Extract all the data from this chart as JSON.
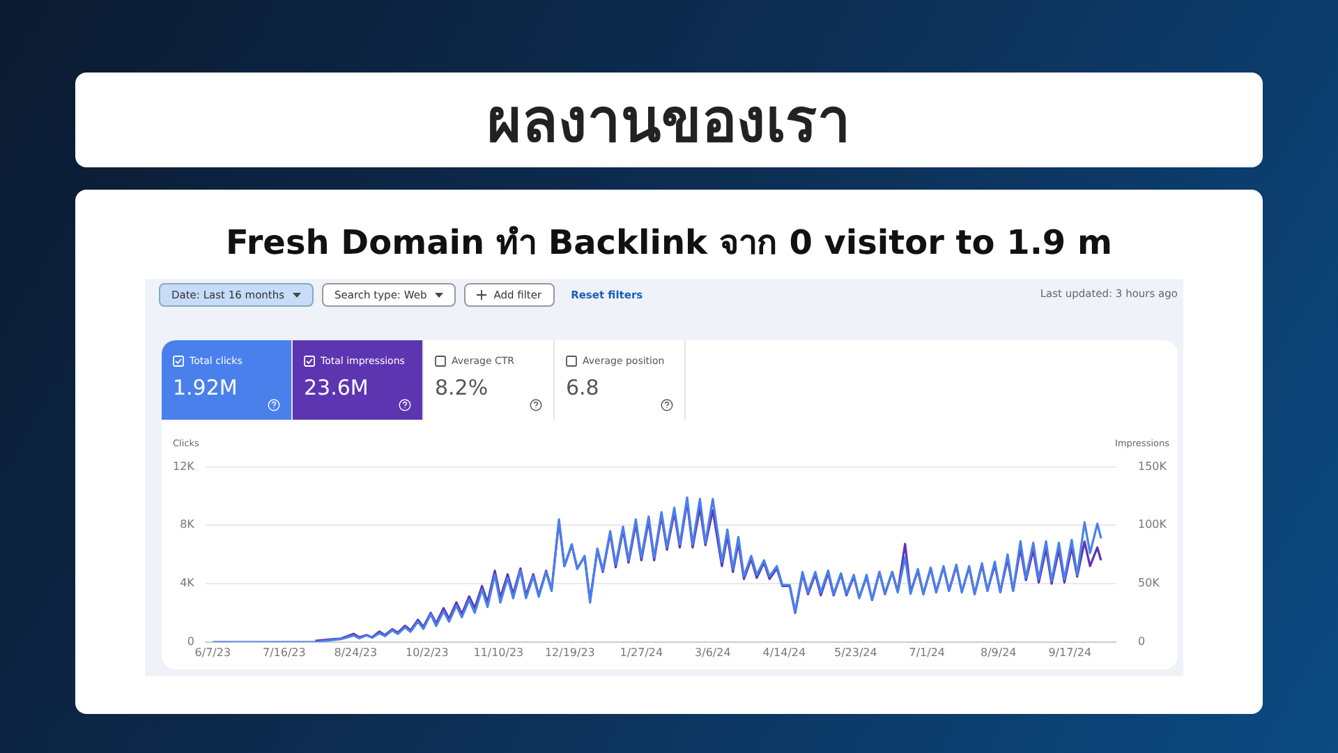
{
  "chart_data": {
    "type": "line",
    "title": "ผลงานของเรา",
    "subtitle": "Fresh Domain ทำ Backlink จาก 0 visitor to 1.9 m",
    "ylabel": "Clicks",
    "y2label": "Impressions",
    "annotations": [
      "Date: Last 16 months",
      "Search type: Web",
      "Add filter",
      "Reset filters",
      "Last updated: 3 hours ago",
      "Total clicks",
      "1.92M",
      "Total impressions",
      "23.6M",
      "Average CTR",
      "8.2%",
      "Average position",
      "6.8"
    ],
    "x": [
      "2023-06-07",
      "2023-06-21",
      "2023-07-05",
      "2023-07-19",
      "2023-08-02",
      "2023-08-09",
      "2023-08-16",
      "2023-08-23",
      "2023-08-26",
      "2023-08-30",
      "2023-09-02",
      "2023-09-06",
      "2023-09-09",
      "2023-09-13",
      "2023-09-16",
      "2023-09-20",
      "2023-09-23",
      "2023-09-27",
      "2023-09-30",
      "2023-10-04",
      "2023-10-07",
      "2023-10-11",
      "2023-10-14",
      "2023-10-18",
      "2023-10-21",
      "2023-10-25",
      "2023-10-28",
      "2023-11-01",
      "2023-11-04",
      "2023-11-08",
      "2023-11-11",
      "2023-11-15",
      "2023-11-18",
      "2023-11-22",
      "2023-11-25",
      "2023-11-29",
      "2023-12-02",
      "2023-12-06",
      "2023-12-09",
      "2023-12-13",
      "2023-12-16",
      "2023-12-20",
      "2023-12-23",
      "2023-12-27",
      "2023-12-30",
      "2024-01-03",
      "2024-01-06",
      "2024-01-10",
      "2024-01-13",
      "2024-01-17",
      "2024-01-20",
      "2024-01-24",
      "2024-01-27",
      "2024-01-31",
      "2024-02-03",
      "2024-02-07",
      "2024-02-10",
      "2024-02-14",
      "2024-02-17",
      "2024-02-21",
      "2024-02-24",
      "2024-02-28",
      "2024-03-02",
      "2024-03-06",
      "2024-03-11",
      "2024-03-14",
      "2024-03-17",
      "2024-03-20",
      "2024-03-23",
      "2024-03-27",
      "2024-03-30",
      "2024-04-03",
      "2024-04-06",
      "2024-04-10",
      "2024-04-13",
      "2024-04-17",
      "2024-04-20",
      "2024-04-24",
      "2024-04-27",
      "2024-05-01",
      "2024-05-04",
      "2024-05-08",
      "2024-05-11",
      "2024-05-15",
      "2024-05-18",
      "2024-05-22",
      "2024-05-25",
      "2024-05-29",
      "2024-06-01",
      "2024-06-05",
      "2024-06-08",
      "2024-06-12",
      "2024-06-15",
      "2024-06-19",
      "2024-06-22",
      "2024-06-26",
      "2024-06-29",
      "2024-07-03",
      "2024-07-06",
      "2024-07-10",
      "2024-07-13",
      "2024-07-17",
      "2024-07-20",
      "2024-07-24",
      "2024-07-27",
      "2024-07-31",
      "2024-08-03",
      "2024-08-07",
      "2024-08-10",
      "2024-08-14",
      "2024-08-17",
      "2024-08-21",
      "2024-08-24",
      "2024-08-28",
      "2024-08-31",
      "2024-09-04",
      "2024-09-07",
      "2024-09-11",
      "2024-09-14",
      "2024-09-18",
      "2024-09-21",
      "2024-09-25",
      "2024-09-28",
      "2024-10-02",
      "2024-10-04"
    ],
    "series": [
      {
        "color": "#4a80ec",
        "values": [
          0,
          0,
          0,
          0,
          0,
          100,
          200,
          450,
          250,
          450,
          300,
          600,
          400,
          800,
          550,
          1000,
          700,
          1400,
          900,
          1900,
          1100,
          2100,
          1400,
          2500,
          1700,
          2900,
          2000,
          3600,
          2400,
          4600,
          2700,
          4400,
          3000,
          4900,
          3000,
          4500,
          3100,
          4800,
          3500,
          8400,
          5200,
          6700,
          5000,
          5900,
          2700,
          6400,
          4900,
          7600,
          5300,
          7900,
          5600,
          8400,
          5800,
          8600,
          5800,
          8900,
          6500,
          9200,
          6700,
          9900,
          6700,
          9800,
          6800,
          9800,
          5500,
          7700,
          5000,
          7200,
          4500,
          5900,
          4600,
          5600,
          4500,
          5200,
          3900,
          3900,
          2100,
          4800,
          3400,
          4800,
          3400,
          4900,
          3300,
          4700,
          3300,
          4600,
          3000,
          4600,
          2900,
          4800,
          3300,
          4800,
          3400,
          5800,
          3300,
          5000,
          3300,
          5100,
          3400,
          5200,
          3500,
          5300,
          3400,
          5200,
          3300,
          5400,
          3500,
          5500,
          3400,
          6000,
          3500,
          6900,
          4400,
          6800,
          4300,
          6900,
          4200,
          6800,
          4300,
          7000,
          4600,
          8200,
          6100,
          8100,
          7100
        ]
      },
      {
        "color": "#5e35b1",
        "axis": "y2",
        "values": [
          null,
          null,
          null,
          null,
          1000,
          2000,
          3000,
          7000,
          4000,
          6000,
          4000,
          9000,
          6000,
          11000,
          8000,
          14000,
          10000,
          19000,
          13000,
          25000,
          16000,
          29000,
          20000,
          34000,
          24000,
          39000,
          29000,
          48000,
          34000,
          61000,
          38000,
          58000,
          41000,
          63000,
          40000,
          58000,
          40000,
          61000,
          45000,
          103000,
          65000,
          83000,
          63000,
          73000,
          36000,
          79000,
          60000,
          93000,
          64000,
          96000,
          68000,
          101000,
          70000,
          104000,
          70000,
          108000,
          79000,
          111000,
          81000,
          120000,
          81000,
          115000,
          83000,
          113000,
          65000,
          91000,
          60000,
          85000,
          54000,
          71000,
          55000,
          68000,
          54000,
          63000,
          48000,
          48000,
          25000,
          58000,
          41000,
          58000,
          40000,
          59000,
          40000,
          58000,
          40000,
          56000,
          38000,
          56000,
          36000,
          60000,
          41000,
          60000,
          43000,
          84000,
          43000,
          61000,
          41000,
          63000,
          43000,
          64000,
          44000,
          65000,
          43000,
          64000,
          41000,
          66000,
          44000,
          66000,
          43000,
          71000,
          44000,
          80000,
          53000,
          79000,
          51000,
          80000,
          50000,
          79000,
          51000,
          81000,
          56000,
          86000,
          65000,
          81000,
          70000
        ]
      }
    ],
    "xlim": [
      "2023-06-03",
      "2024-10-12"
    ],
    "xticks": [
      {
        "value": "2023-06-07",
        "label": "6/7/23"
      },
      {
        "value": "2023-07-16",
        "label": "7/16/23"
      },
      {
        "value": "2023-08-24",
        "label": "8/24/23"
      },
      {
        "value": "2023-10-02",
        "label": "10/2/23"
      },
      {
        "value": "2023-11-10",
        "label": "11/10/23"
      },
      {
        "value": "2023-12-19",
        "label": "12/19/23"
      },
      {
        "value": "2024-01-27",
        "label": "1/27/24"
      },
      {
        "value": "2024-03-06",
        "label": "3/6/24"
      },
      {
        "value": "2024-04-14",
        "label": "4/14/24"
      },
      {
        "value": "2024-05-23",
        "label": "5/23/24"
      },
      {
        "value": "2024-07-01",
        "label": "7/1/24"
      },
      {
        "value": "2024-08-09",
        "label": "8/9/24"
      },
      {
        "value": "2024-09-17",
        "label": "9/17/24"
      }
    ],
    "ylim": [
      0,
      12000
    ],
    "yticks": [
      0,
      {
        "value": 4000,
        "label": "4K"
      },
      {
        "value": 8000,
        "label": "8K"
      },
      {
        "value": 12000,
        "label": "12K"
      }
    ],
    "y2lim": [
      0,
      150000
    ],
    "y2ticks": [
      0,
      {
        "value": 50000,
        "label": "50K"
      },
      {
        "value": 100000,
        "label": "100K"
      },
      {
        "value": 150000,
        "label": "150K"
      }
    ],
    "grid": "y",
    "legend": false
  }
}
